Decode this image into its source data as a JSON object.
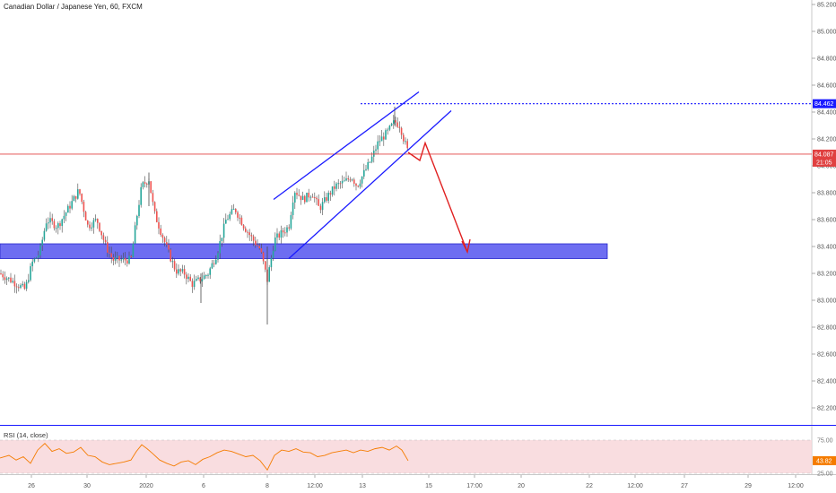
{
  "header": {
    "symbol_title": "Canadian Dollar / Japanese Yen, 60, FXCM"
  },
  "rsi_panel": {
    "label": "RSI (14, close)",
    "line_color": "#f57c00",
    "band_color": "#f8d7da"
  },
  "colors": {
    "up_candle": "#26a69a",
    "down_candle": "#ef5350",
    "wick": "#4a4a4a",
    "channel": "#1a1aff",
    "support_zone": "#5555ee",
    "projection_arrow": "#e02020",
    "current_price_line": "#e04040",
    "resistance_dotted": "#1a1aff"
  },
  "chart_data": [
    {
      "type": "candlestick",
      "title": "Canadian Dollar / Japanese Yen, 60, FXCM",
      "ylim": [
        82.0,
        85.25
      ],
      "y_ticks": [
        "85.200",
        "85.000",
        "84.800",
        "84.600",
        "84.400",
        "84.200",
        "84.000",
        "83.800",
        "83.600",
        "83.400",
        "83.200",
        "83.000",
        "82.800",
        "82.600",
        "82.400",
        "82.200"
      ],
      "x_ticks": [
        "26",
        "30",
        "2020",
        "6",
        "8",
        "12:00",
        "13",
        "15",
        "17:00",
        "20",
        "22",
        "12:00",
        "27",
        "29",
        "12:00"
      ],
      "price_labels": {
        "resistance": "84.462",
        "current": "84.087",
        "countdown": "21:05"
      },
      "levels": {
        "resistance": 84.462,
        "current": 84.087
      },
      "support_zone": [
        83.31,
        83.42
      ],
      "channel": {
        "upper": [
          [
            305,
            83.75
          ],
          [
            467,
            84.55
          ]
        ],
        "lower": [
          [
            322,
            83.31
          ],
          [
            503,
            84.41
          ]
        ]
      },
      "projection_path": [
        [
          455,
          84.1
        ],
        [
          468,
          84.04
        ],
        [
          474,
          84.17
        ],
        [
          521,
          83.36
        ]
      ],
      "anchors": [
        [
          0,
          83.2
        ],
        [
          12,
          83.15
        ],
        [
          28,
          83.08
        ],
        [
          36,
          83.28
        ],
        [
          44,
          83.35
        ],
        [
          52,
          83.6
        ],
        [
          64,
          83.55
        ],
        [
          76,
          83.68
        ],
        [
          88,
          83.82
        ],
        [
          98,
          83.55
        ],
        [
          108,
          83.6
        ],
        [
          118,
          83.4
        ],
        [
          126,
          83.3
        ],
        [
          134,
          83.3
        ],
        [
          146,
          83.3
        ],
        [
          152,
          83.6
        ],
        [
          158,
          83.85
        ],
        [
          166,
          83.9
        ],
        [
          172,
          83.65
        ],
        [
          180,
          83.5
        ],
        [
          188,
          83.35
        ],
        [
          196,
          83.22
        ],
        [
          206,
          83.2
        ],
        [
          214,
          83.12
        ],
        [
          222,
          83.15
        ],
        [
          232,
          83.2
        ],
        [
          242,
          83.35
        ],
        [
          252,
          83.6
        ],
        [
          262,
          83.68
        ],
        [
          272,
          83.55
        ],
        [
          282,
          83.45
        ],
        [
          290,
          83.38
        ],
        [
          298,
          83.15
        ],
        [
          306,
          83.45
        ],
        [
          314,
          83.5
        ],
        [
          322,
          83.55
        ],
        [
          328,
          83.82
        ],
        [
          338,
          83.75
        ],
        [
          348,
          83.8
        ],
        [
          356,
          83.68
        ],
        [
          366,
          83.78
        ],
        [
          374,
          83.85
        ],
        [
          384,
          83.88
        ],
        [
          392,
          83.92
        ],
        [
          398,
          83.85
        ],
        [
          406,
          83.95
        ],
        [
          414,
          84.05
        ],
        [
          422,
          84.18
        ],
        [
          432,
          84.25
        ],
        [
          440,
          84.33
        ],
        [
          446,
          84.3
        ],
        [
          450,
          84.2
        ],
        [
          455,
          84.1
        ]
      ]
    },
    {
      "type": "line",
      "title": "RSI (14, close)",
      "ylim": [
        25,
        75
      ],
      "y_ticks": [
        "75.00",
        "25.00"
      ],
      "current_value": "43.82",
      "series": [
        {
          "name": "RSI (14, close)",
          "points": [
            [
              0,
              48
            ],
            [
              10,
              52
            ],
            [
              18,
              45
            ],
            [
              26,
              50
            ],
            [
              34,
              40
            ],
            [
              42,
              60
            ],
            [
              50,
              70
            ],
            [
              58,
              58
            ],
            [
              66,
              62
            ],
            [
              74,
              55
            ],
            [
              82,
              57
            ],
            [
              90,
              64
            ],
            [
              98,
              52
            ],
            [
              106,
              50
            ],
            [
              114,
              42
            ],
            [
              122,
              38
            ],
            [
              130,
              40
            ],
            [
              138,
              42
            ],
            [
              146,
              45
            ],
            [
              152,
              58
            ],
            [
              158,
              68
            ],
            [
              164,
              62
            ],
            [
              170,
              55
            ],
            [
              178,
              45
            ],
            [
              186,
              40
            ],
            [
              194,
              36
            ],
            [
              202,
              42
            ],
            [
              210,
              44
            ],
            [
              218,
              38
            ],
            [
              226,
              46
            ],
            [
              234,
              50
            ],
            [
              242,
              56
            ],
            [
              250,
              60
            ],
            [
              258,
              58
            ],
            [
              266,
              54
            ],
            [
              274,
              50
            ],
            [
              282,
              52
            ],
            [
              290,
              44
            ],
            [
              298,
              30
            ],
            [
              306,
              52
            ],
            [
              314,
              60
            ],
            [
              322,
              58
            ],
            [
              330,
              62
            ],
            [
              338,
              57
            ],
            [
              346,
              56
            ],
            [
              354,
              50
            ],
            [
              362,
              52
            ],
            [
              370,
              56
            ],
            [
              378,
              58
            ],
            [
              386,
              60
            ],
            [
              394,
              56
            ],
            [
              402,
              60
            ],
            [
              410,
              58
            ],
            [
              418,
              62
            ],
            [
              426,
              64
            ],
            [
              434,
              60
            ],
            [
              442,
              66
            ],
            [
              448,
              60
            ],
            [
              455,
              44
            ]
          ]
        }
      ]
    }
  ]
}
